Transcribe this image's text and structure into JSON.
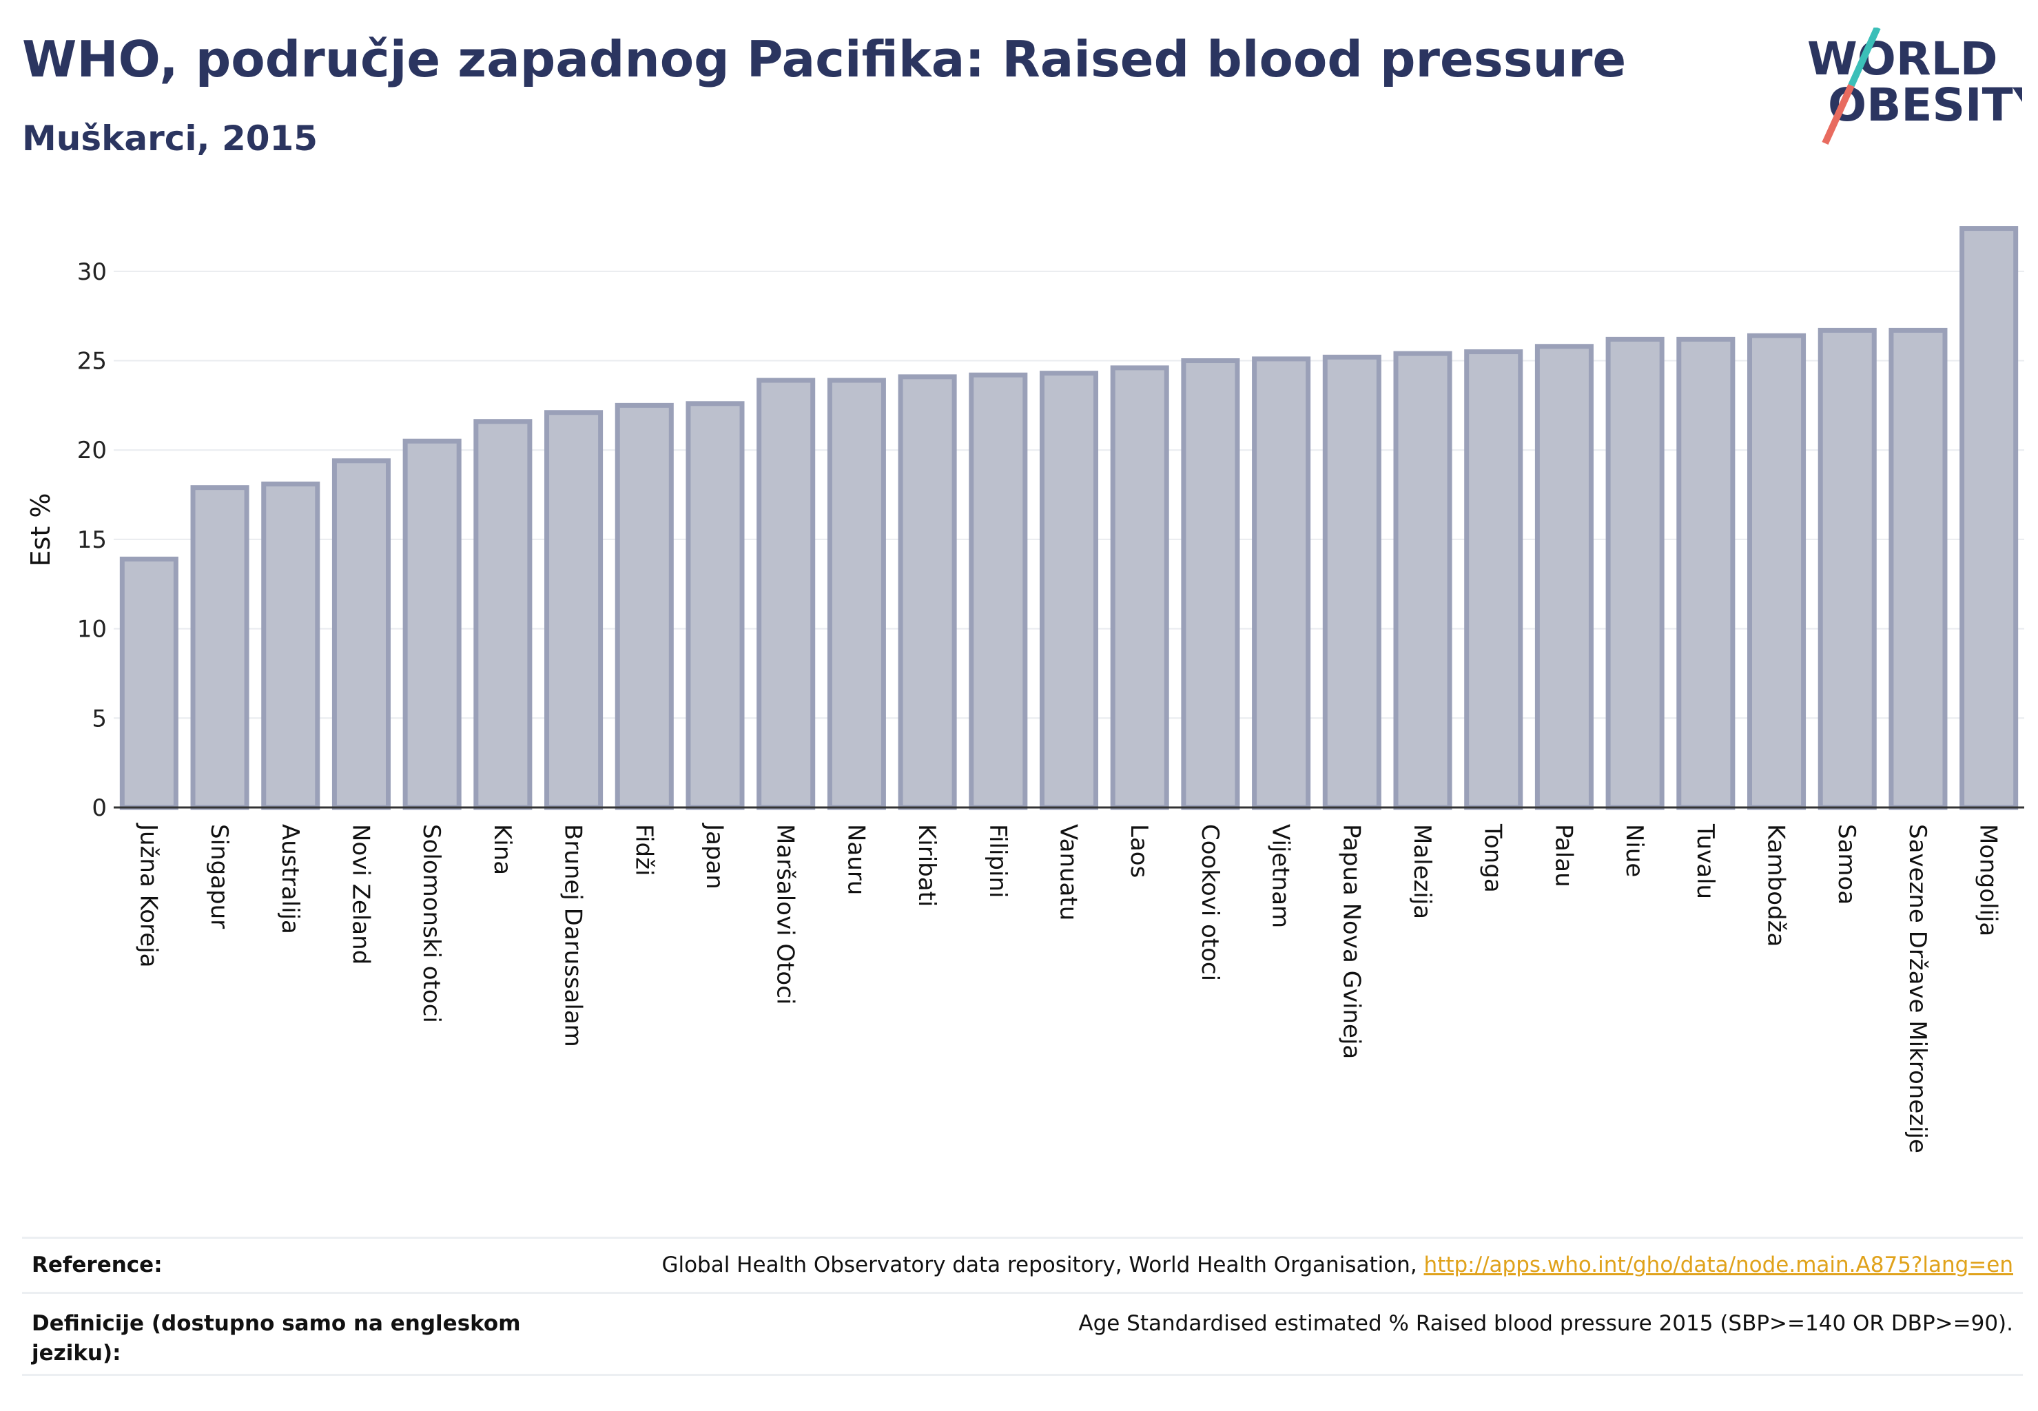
{
  "header": {
    "title": "WHO, područje zapadnog Pacifika: Raised blood pressure",
    "subtitle": "Muškarci, 2015"
  },
  "logo": {
    "line1": "WORLD",
    "line2": "OBESITY"
  },
  "colors": {
    "bar_fill": "#bcc0cd",
    "bar_stroke": "#9aa0b8",
    "title": "#2b3560",
    "link": "#e0a21b",
    "logo_teal": "#3bbfb8",
    "logo_coral": "#e86b5f"
  },
  "chart_data": {
    "type": "bar",
    "title": "WHO, područje zapadnog Pacifika: Raised blood pressure",
    "subtitle": "Muškarci, 2015",
    "ylabel": "Est %",
    "xlabel": "",
    "ylim": [
      0,
      33
    ],
    "yticks": [
      0,
      5,
      10,
      15,
      20,
      25,
      30
    ],
    "grid": true,
    "categories": [
      "Južna Koreja",
      "Singapur",
      "Australija",
      "Novi Zeland",
      "Solomonski otoci",
      "Kina",
      "Brunej Darussalam",
      "Fidži",
      "Japan",
      "Maršalovi Otoci",
      "Nauru",
      "Kiribati",
      "Filipini",
      "Vanuatu",
      "Laos",
      "Cookovi otoci",
      "Vijetnam",
      "Papua Nova Gvineja",
      "Malezija",
      "Tonga",
      "Palau",
      "Niue",
      "Tuvalu",
      "Kambodža",
      "Samoa",
      "Savezne Države Mikronezije",
      "Mongolija"
    ],
    "values": [
      13.9,
      17.9,
      18.1,
      19.4,
      20.5,
      21.6,
      22.1,
      22.5,
      22.6,
      23.9,
      23.9,
      24.1,
      24.2,
      24.3,
      24.6,
      25.0,
      25.1,
      25.2,
      25.4,
      25.5,
      25.8,
      26.2,
      26.2,
      26.4,
      26.7,
      26.7,
      32.4
    ]
  },
  "footer": {
    "reference_label": "Reference:",
    "reference_text": "Global Health Observatory data repository, World Health Organisation, ",
    "reference_link": "http://apps.who.int/gho/data/node.main.A875?lang=en",
    "definition_label": "Definicije (dostupno samo na engleskom jeziku):",
    "definition_text": "Age Standardised estimated % Raised blood pressure 2015 (SBP>=140 OR DBP>=90)."
  }
}
